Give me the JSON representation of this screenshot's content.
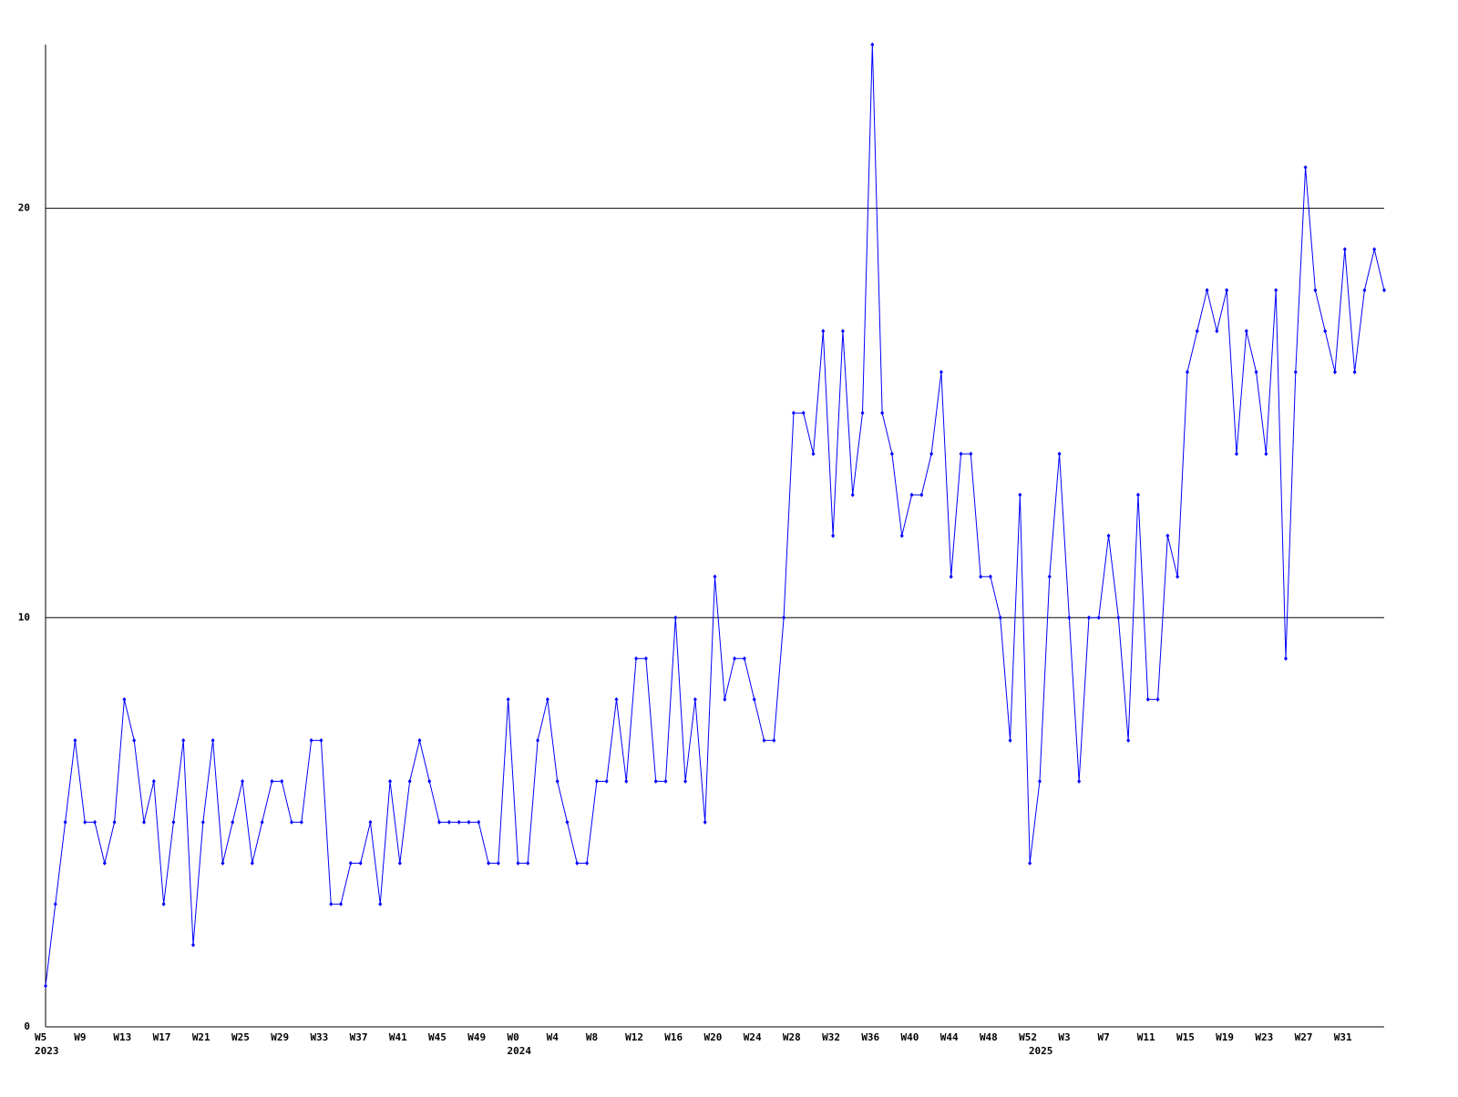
{
  "chart_data": {
    "type": "line",
    "categories": [
      "W5",
      null,
      null,
      null,
      "W9",
      null,
      null,
      null,
      "W13",
      null,
      null,
      null,
      "W17",
      null,
      null,
      null,
      "W21",
      null,
      null,
      null,
      "W25",
      null,
      null,
      null,
      "W29",
      null,
      null,
      null,
      "W33",
      null,
      null,
      null,
      "W37",
      null,
      null,
      null,
      "W41",
      null,
      null,
      null,
      "W45",
      null,
      null,
      null,
      "W49",
      null,
      null,
      null,
      "W0",
      null,
      null,
      null,
      "W4",
      null,
      null,
      null,
      "W8",
      null,
      null,
      null,
      "W12",
      null,
      null,
      null,
      "W16",
      null,
      null,
      null,
      "W20",
      null,
      null,
      null,
      "W24",
      null,
      null,
      null,
      "W28",
      null,
      null,
      null,
      "W32",
      null,
      null,
      null,
      "W36",
      null,
      null,
      null,
      "W40",
      null,
      null,
      null,
      "W44",
      null,
      null,
      null,
      "W48",
      null,
      null,
      null,
      "W52",
      null,
      null,
      null,
      "W3",
      null,
      null,
      null,
      "W7",
      null,
      null,
      null,
      "W11",
      null,
      null,
      null,
      "W15",
      null,
      null,
      null,
      "W19",
      null,
      null,
      null,
      "W23",
      null,
      null,
      null,
      "W27",
      null,
      null,
      null,
      "W31",
      null,
      null,
      null,
      null
    ],
    "years": [
      "2023",
      null,
      null,
      null,
      null,
      null,
      null,
      null,
      null,
      null,
      null,
      null,
      null,
      null,
      null,
      null,
      null,
      null,
      null,
      null,
      null,
      null,
      null,
      null,
      null,
      null,
      null,
      null,
      null,
      null,
      null,
      null,
      null,
      null,
      null,
      null,
      null,
      null,
      null,
      null,
      null,
      null,
      null,
      null,
      null,
      null,
      null,
      null,
      "2024",
      null,
      null,
      null,
      null,
      null,
      null,
      null,
      null,
      null,
      null,
      null,
      null,
      null,
      null,
      null,
      null,
      null,
      null,
      null,
      null,
      null,
      null,
      null,
      null,
      null,
      null,
      null,
      null,
      null,
      null,
      null,
      null,
      null,
      null,
      null,
      null,
      null,
      null,
      null,
      null,
      null,
      null,
      null,
      null,
      null,
      null,
      null,
      null,
      null,
      null,
      null,
      null,
      "2025",
      null,
      null,
      null,
      null,
      null,
      null,
      null,
      null,
      null,
      null,
      null,
      null,
      null,
      null,
      null,
      null,
      null,
      null,
      null,
      null,
      null,
      null,
      null,
      null,
      null,
      null,
      null,
      null,
      null,
      null,
      null,
      null,
      null,
      null,
      null
    ],
    "values": [
      1,
      3,
      5,
      7,
      5,
      5,
      4,
      5,
      8,
      7,
      5,
      6,
      3,
      5,
      7,
      2,
      5,
      7,
      4,
      5,
      6,
      4,
      5,
      6,
      6,
      5,
      5,
      7,
      7,
      3,
      3,
      4,
      4,
      5,
      3,
      6,
      4,
      6,
      7,
      6,
      5,
      5,
      5,
      5,
      5,
      4,
      4,
      8,
      4,
      4,
      7,
      8,
      6,
      5,
      4,
      4,
      6,
      6,
      8,
      6,
      9,
      9,
      6,
      6,
      10,
      6,
      8,
      5,
      11,
      8,
      9,
      9,
      8,
      7,
      7,
      10,
      15,
      15,
      14,
      17,
      12,
      17,
      13,
      15,
      24,
      15,
      14,
      12,
      13,
      13,
      14,
      16,
      11,
      14,
      14,
      11,
      11,
      10,
      7,
      13,
      4,
      6,
      11,
      14,
      10,
      6,
      10,
      10,
      12,
      10,
      7,
      13,
      8,
      8,
      12,
      11,
      16,
      17,
      18,
      17,
      18,
      14,
      17,
      16,
      14,
      18,
      9,
      16,
      21,
      18,
      17,
      16,
      19,
      16,
      18,
      19,
      18
    ],
    "color": "#0000ff",
    "ylim": [
      0,
      24
    ],
    "yticks": [
      0,
      10,
      20
    ],
    "grid": true
  }
}
